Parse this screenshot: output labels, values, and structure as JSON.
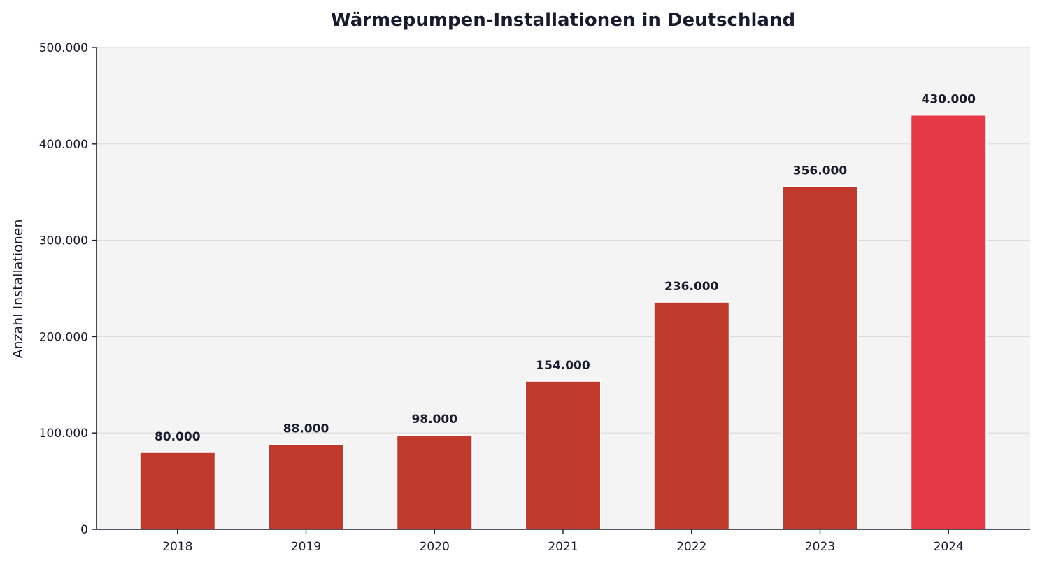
{
  "chart_data": {
    "type": "bar",
    "title": "Wärmepumpen-Installationen in Deutschland",
    "xlabel": "",
    "ylabel": "Anzahl Installationen",
    "categories": [
      "2018",
      "2019",
      "2020",
      "2021",
      "2022",
      "2023",
      "2024"
    ],
    "values": [
      80000,
      88000,
      98000,
      154000,
      236000,
      356000,
      430000
    ],
    "value_labels": [
      "80.000",
      "88.000",
      "98.000",
      "154.000",
      "236.000",
      "356.000",
      "430.000"
    ],
    "ylim": [
      0,
      500000
    ],
    "yticks": [
      0,
      100000,
      200000,
      300000,
      400000,
      500000
    ],
    "ytick_labels": [
      "0",
      "100.000",
      "200.000",
      "300.000",
      "400.000",
      "500.000"
    ],
    "grid": true,
    "legend": "none",
    "colors": {
      "bar": "#c0392b",
      "bar_highlight": "#e63946",
      "plot_background": "#f4f4f4",
      "gridline": "#dcdcdc",
      "axis": "#1a1a2e",
      "text": "#1a1a2e"
    },
    "highlight_index": 6
  }
}
